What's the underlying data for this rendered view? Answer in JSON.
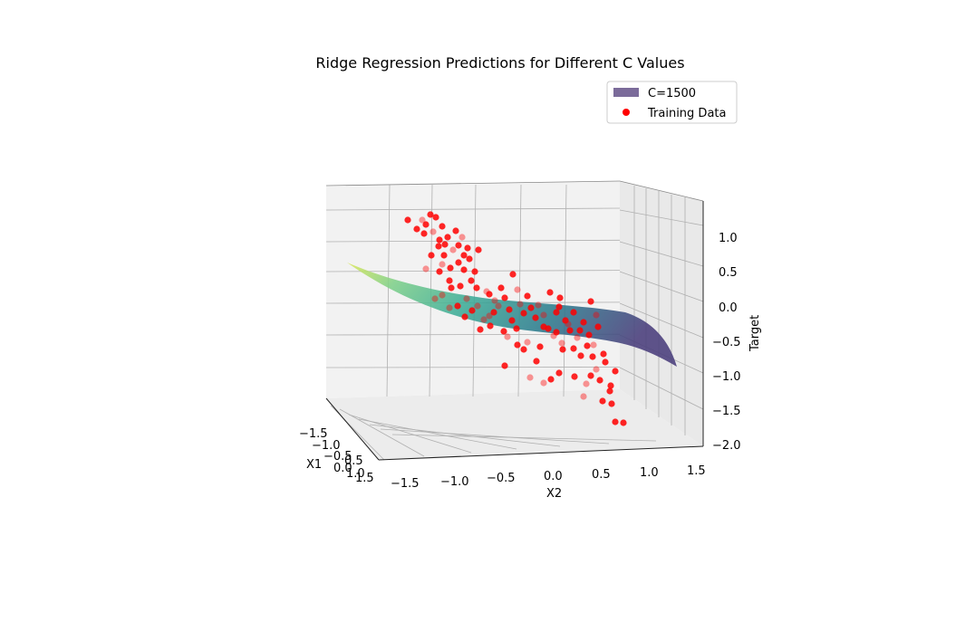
{
  "chart_data": {
    "type": "surface3d",
    "title": "Ridge Regression Predictions for Different C Values",
    "xlabel": "X1",
    "ylabel": "X2",
    "zlabel": "Target",
    "x_ticks": [
      "−1.5",
      "−1.0",
      "−0.5",
      "0.0",
      "0.5",
      "1.0",
      "1.5"
    ],
    "y_ticks": [
      "−1.5",
      "−1.0",
      "−0.5",
      "0.0",
      "0.5",
      "1.0",
      "1.5"
    ],
    "z_ticks": [
      "1.0",
      "0.5",
      "0.0",
      "−0.5",
      "−1.0",
      "−1.5",
      "−2.0"
    ],
    "xlim": [
      -1.5,
      1.5
    ],
    "ylim": [
      -1.5,
      1.5
    ],
    "zlim": [
      -2.0,
      1.0
    ],
    "legend_position": "top-right",
    "grid": true,
    "series": [
      {
        "name": "C=1500",
        "kind": "surface",
        "color": "#7b6b9a",
        "colormap": "viridis"
      },
      {
        "name": "Training Data",
        "kind": "scatter",
        "color": "#ff0000"
      }
    ]
  }
}
